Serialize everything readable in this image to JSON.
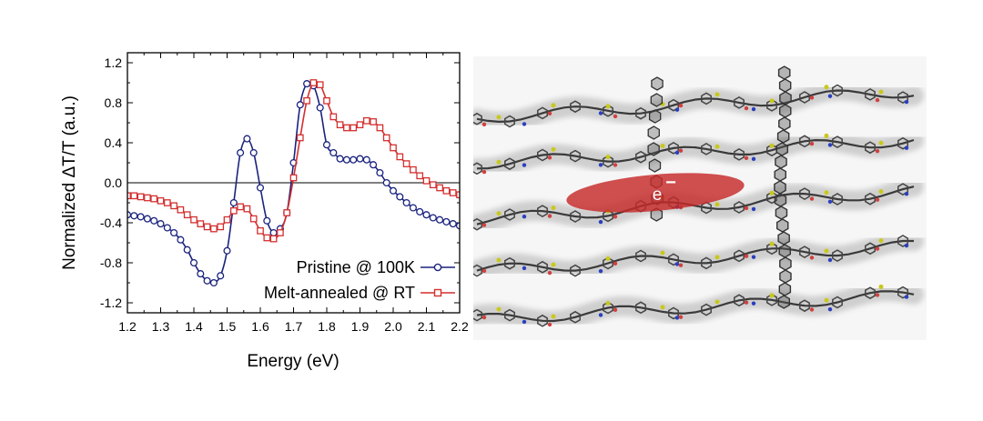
{
  "chart_data": {
    "type": "line",
    "xlabel": "Energy (eV)",
    "ylabel": "Normalized ΔT/T (a.u.)",
    "xlim": [
      1.2,
      2.2
    ],
    "ylim": [
      -1.3,
      1.3
    ],
    "xticks": [
      "1.2",
      "1.3",
      "1.4",
      "1.5",
      "1.6",
      "1.7",
      "1.8",
      "1.9",
      "2.0",
      "2.1",
      "2.2"
    ],
    "yticks": [
      "-1.2",
      "-0.8",
      "-0.4",
      "0.0",
      "0.4",
      "0.8",
      "1.2"
    ],
    "xtick_values": [
      1.2,
      1.3,
      1.4,
      1.5,
      1.6,
      1.7,
      1.8,
      1.9,
      2.0,
      2.1,
      2.2
    ],
    "ytick_values": [
      -1.2,
      -0.8,
      -0.4,
      0.0,
      0.4,
      0.8,
      1.2
    ],
    "zero_line": true,
    "grid": false,
    "legend_position": "bottom-right",
    "series": [
      {
        "name": "Pristine @ 100K",
        "color": "#1a237e",
        "marker": "circle",
        "x": [
          1.2,
          1.22,
          1.24,
          1.26,
          1.28,
          1.3,
          1.32,
          1.34,
          1.36,
          1.38,
          1.4,
          1.42,
          1.44,
          1.46,
          1.48,
          1.5,
          1.52,
          1.54,
          1.56,
          1.58,
          1.6,
          1.62,
          1.64,
          1.66,
          1.68,
          1.7,
          1.72,
          1.74,
          1.76,
          1.78,
          1.8,
          1.82,
          1.84,
          1.86,
          1.88,
          1.9,
          1.92,
          1.94,
          1.96,
          1.98,
          2.0,
          2.02,
          2.04,
          2.06,
          2.08,
          2.1,
          2.12,
          2.14,
          2.16,
          2.18,
          2.2
        ],
        "y": [
          -0.32,
          -0.33,
          -0.34,
          -0.36,
          -0.38,
          -0.41,
          -0.45,
          -0.5,
          -0.57,
          -0.67,
          -0.8,
          -0.91,
          -0.98,
          -1.0,
          -0.93,
          -0.68,
          -0.2,
          0.3,
          0.44,
          0.3,
          -0.05,
          -0.38,
          -0.5,
          -0.46,
          -0.3,
          0.2,
          0.78,
          0.99,
          0.97,
          0.75,
          0.38,
          0.3,
          0.24,
          0.23,
          0.23,
          0.24,
          0.23,
          0.18,
          0.1,
          0.0,
          -0.08,
          -0.14,
          -0.2,
          -0.25,
          -0.29,
          -0.32,
          -0.35,
          -0.37,
          -0.39,
          -0.41,
          -0.43
        ]
      },
      {
        "name": "Melt-annealed @ RT",
        "color": "#d32f2f",
        "marker": "square",
        "x": [
          1.2,
          1.22,
          1.24,
          1.26,
          1.28,
          1.3,
          1.32,
          1.34,
          1.36,
          1.38,
          1.4,
          1.42,
          1.44,
          1.46,
          1.48,
          1.5,
          1.52,
          1.54,
          1.56,
          1.58,
          1.6,
          1.62,
          1.64,
          1.66,
          1.68,
          1.7,
          1.72,
          1.74,
          1.76,
          1.78,
          1.8,
          1.82,
          1.84,
          1.86,
          1.88,
          1.9,
          1.92,
          1.94,
          1.96,
          1.98,
          2.0,
          2.02,
          2.04,
          2.06,
          2.08,
          2.1,
          2.12,
          2.14,
          2.16,
          2.18,
          2.2
        ],
        "y": [
          -0.13,
          -0.13,
          -0.14,
          -0.15,
          -0.16,
          -0.18,
          -0.2,
          -0.23,
          -0.27,
          -0.32,
          -0.37,
          -0.41,
          -0.44,
          -0.46,
          -0.44,
          -0.37,
          -0.28,
          -0.24,
          -0.26,
          -0.36,
          -0.48,
          -0.55,
          -0.56,
          -0.5,
          -0.3,
          0.05,
          0.45,
          0.82,
          1.0,
          0.98,
          0.82,
          0.66,
          0.58,
          0.55,
          0.55,
          0.58,
          0.62,
          0.61,
          0.55,
          0.45,
          0.35,
          0.26,
          0.19,
          0.13,
          0.07,
          0.02,
          -0.02,
          -0.05,
          -0.08,
          -0.1,
          -0.12
        ]
      }
    ]
  },
  "figure": {
    "electron_label": "e",
    "electron_superscript": "−",
    "electron_color": "#c62828"
  }
}
